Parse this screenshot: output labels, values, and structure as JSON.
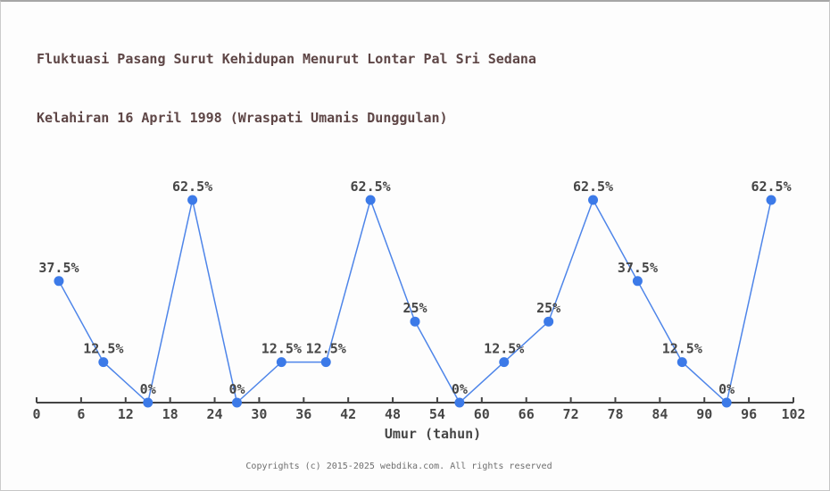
{
  "chart_data": {
    "type": "line",
    "title": "Fluktuasi Pasang Surut Kehidupan Menurut Lontar Pal Sri Sedana",
    "subtitle": "Kelahiran 16 April 1998 (Wraspati Umanis Dunggulan)",
    "xlabel": "Umur (tahun)",
    "x": [
      3,
      9,
      15,
      21,
      27,
      33,
      39,
      45,
      51,
      57,
      63,
      69,
      75,
      81,
      87,
      93,
      99
    ],
    "values": [
      37.5,
      12.5,
      0,
      62.5,
      0,
      12.5,
      12.5,
      62.5,
      25,
      0,
      12.5,
      25,
      62.5,
      37.5,
      12.5,
      0,
      62.5
    ],
    "point_labels": [
      "37.5%",
      "12.5%",
      "0%",
      "62.5%",
      "0%",
      "12.5%",
      "12.5%",
      "62.5%",
      "25%",
      "0%",
      "12.5%",
      "25%",
      "62.5%",
      "37.5%",
      "12.5%",
      "0%",
      "62.5%"
    ],
    "x_ticks": [
      0,
      6,
      12,
      18,
      24,
      30,
      36,
      42,
      48,
      54,
      60,
      66,
      72,
      78,
      84,
      90,
      96,
      102
    ],
    "xlim": [
      0,
      102
    ],
    "ylim": [
      0,
      68.75
    ],
    "grid": false,
    "legend": false,
    "line_color": "#4e85e9",
    "marker_color": "#3c7ae8",
    "label_color": "#464646",
    "axis_color": "#444444",
    "title_color": "#5e4646"
  },
  "footer": {
    "copyright": "Copyrights (c) 2015-2025 webdika.com. All rights reserved"
  }
}
